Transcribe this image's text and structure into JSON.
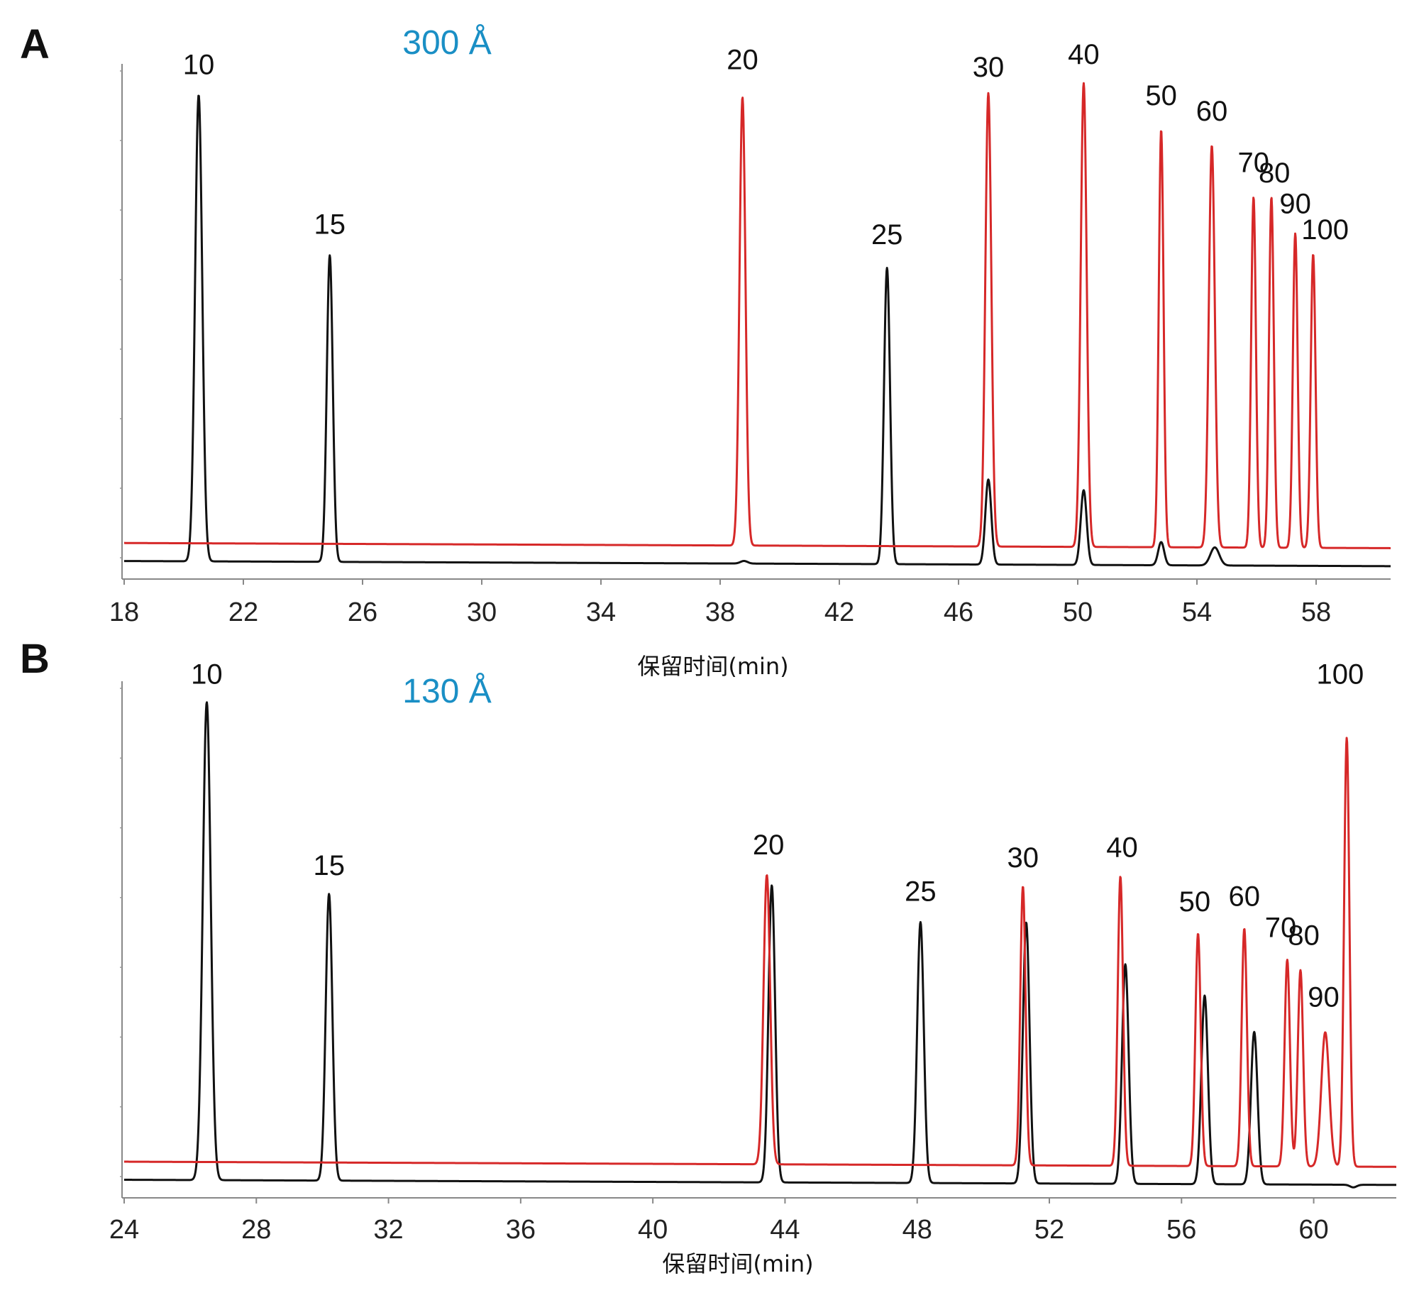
{
  "colors": {
    "black_series": "#111111",
    "red_series": "#d62828",
    "pore_label": "#1a8fc5",
    "axis": "#888888"
  },
  "chart_data": [
    {
      "type": "line",
      "panel": "A",
      "pore_label": "300 Å",
      "xlabel": "保留时间(min)",
      "ylabel": "",
      "xlim": [
        18,
        60.5
      ],
      "xticks": [
        18,
        22,
        26,
        30,
        34,
        38,
        42,
        46,
        50,
        54,
        58
      ],
      "ylim": [
        0,
        100
      ],
      "grid": false,
      "series": [
        {
          "color": "black",
          "baseline": 3.5,
          "baseline_end": 2.5,
          "peaks": [
            {
              "x": 20.5,
              "height": 94,
              "width": 0.12
            },
            {
              "x": 24.9,
              "height": 63,
              "width": 0.1
            },
            {
              "x": 38.8,
              "height": 4,
              "width": 0.12
            },
            {
              "x": 43.6,
              "height": 61,
              "width": 0.1
            },
            {
              "x": 47.0,
              "height": 20,
              "width": 0.1
            },
            {
              "x": 50.2,
              "height": 18,
              "width": 0.1
            },
            {
              "x": 52.8,
              "height": 8,
              "width": 0.1
            },
            {
              "x": 54.6,
              "height": 7,
              "width": 0.15
            }
          ]
        },
        {
          "color": "red",
          "baseline": 7,
          "baseline_end": 6,
          "peaks": [
            {
              "x": 38.75,
              "height": 94,
              "width": 0.1
            },
            {
              "x": 47.0,
              "height": 95,
              "width": 0.1
            },
            {
              "x": 50.2,
              "height": 97,
              "width": 0.1
            },
            {
              "x": 52.8,
              "height": 88,
              "width": 0.08
            },
            {
              "x": 54.5,
              "height": 85,
              "width": 0.1
            },
            {
              "x": 55.9,
              "height": 75,
              "width": 0.08
            },
            {
              "x": 56.5,
              "height": 75,
              "width": 0.08
            },
            {
              "x": 57.3,
              "height": 68,
              "width": 0.08
            },
            {
              "x": 57.9,
              "height": 64,
              "width": 0.08
            }
          ]
        }
      ],
      "annotations": [
        {
          "text": "10",
          "x": 20.5,
          "y": 98
        },
        {
          "text": "15",
          "x": 24.9,
          "y": 67
        },
        {
          "text": "20",
          "x": 38.75,
          "y": 99
        },
        {
          "text": "25",
          "x": 43.6,
          "y": 65
        },
        {
          "text": "30",
          "x": 47.0,
          "y": 97.5
        },
        {
          "text": "40",
          "x": 50.2,
          "y": 100
        },
        {
          "text": "50",
          "x": 52.8,
          "y": 92
        },
        {
          "text": "60",
          "x": 54.5,
          "y": 89
        },
        {
          "text": "70",
          "x": 55.9,
          "y": 79
        },
        {
          "text": "80",
          "x": 56.6,
          "y": 77
        },
        {
          "text": "90",
          "x": 57.3,
          "y": 71
        },
        {
          "text": "100",
          "x": 58.3,
          "y": 66
        }
      ]
    },
    {
      "type": "line",
      "panel": "B",
      "pore_label": "130 Å",
      "xlabel": "保留时间(min)",
      "ylabel": "",
      "xlim": [
        24,
        62.5
      ],
      "xticks": [
        24,
        28,
        32,
        36,
        40,
        44,
        48,
        52,
        56,
        60
      ],
      "ylim": [
        0,
        100
      ],
      "grid": false,
      "series": [
        {
          "color": "black",
          "baseline": 3.5,
          "baseline_end": 2.5,
          "peaks": [
            {
              "x": 26.5,
              "height": 96,
              "width": 0.12
            },
            {
              "x": 30.2,
              "height": 59,
              "width": 0.1
            },
            {
              "x": 43.6,
              "height": 61,
              "width": 0.1
            },
            {
              "x": 48.1,
              "height": 54,
              "width": 0.1
            },
            {
              "x": 51.3,
              "height": 54,
              "width": 0.1
            },
            {
              "x": 54.3,
              "height": 46,
              "width": 0.1
            },
            {
              "x": 56.7,
              "height": 40,
              "width": 0.1
            },
            {
              "x": 58.2,
              "height": 33,
              "width": 0.1
            },
            {
              "x": 61.2,
              "height": 3,
              "width": 0.1
            }
          ]
        },
        {
          "color": "red",
          "baseline": 7,
          "baseline_end": 6,
          "peaks": [
            {
              "x": 43.45,
              "height": 63,
              "width": 0.1
            },
            {
              "x": 51.2,
              "height": 61,
              "width": 0.08
            },
            {
              "x": 54.15,
              "height": 63,
              "width": 0.08
            },
            {
              "x": 56.5,
              "height": 52,
              "width": 0.08
            },
            {
              "x": 57.9,
              "height": 53,
              "width": 0.08
            },
            {
              "x": 59.2,
              "height": 47,
              "width": 0.08
            },
            {
              "x": 59.6,
              "height": 45,
              "width": 0.08
            },
            {
              "x": 60.35,
              "height": 33,
              "width": 0.12
            },
            {
              "x": 61.0,
              "height": 90,
              "width": 0.08
            }
          ]
        }
      ],
      "annotations": [
        {
          "text": "10",
          "x": 26.5,
          "y": 99.5
        },
        {
          "text": "15",
          "x": 30.2,
          "y": 62.5
        },
        {
          "text": "20",
          "x": 43.5,
          "y": 66.5
        },
        {
          "text": "25",
          "x": 48.1,
          "y": 57.5
        },
        {
          "text": "30",
          "x": 51.2,
          "y": 64
        },
        {
          "text": "40",
          "x": 54.2,
          "y": 66
        },
        {
          "text": "50",
          "x": 56.4,
          "y": 55.5
        },
        {
          "text": "60",
          "x": 57.9,
          "y": 56.5
        },
        {
          "text": "70",
          "x": 59.0,
          "y": 50.5
        },
        {
          "text": "80",
          "x": 59.7,
          "y": 49
        },
        {
          "text": "90",
          "x": 60.3,
          "y": 37
        },
        {
          "text": "100",
          "x": 60.8,
          "y": 99.5
        }
      ]
    }
  ]
}
